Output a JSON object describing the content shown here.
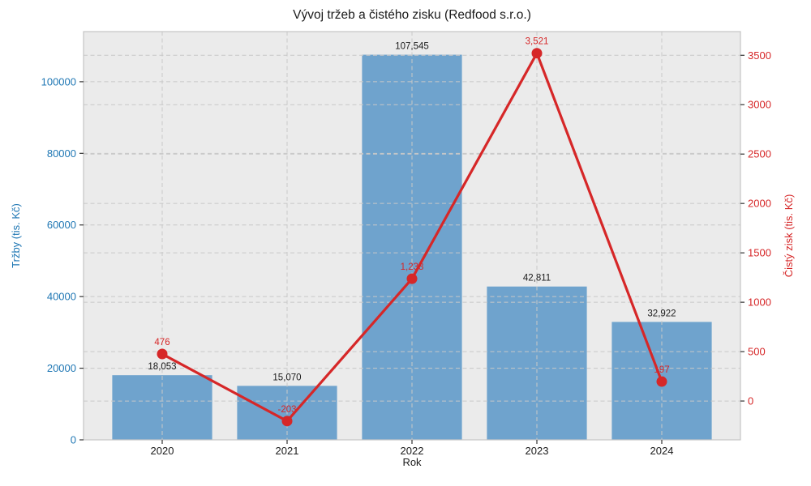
{
  "chart_data": {
    "type": "combo",
    "title": "Vývoj tržeb a čistého zisku (Redfood s.r.o.)",
    "xlabel": "Rok",
    "categories": [
      "2020",
      "2021",
      "2022",
      "2023",
      "2024"
    ],
    "series": [
      {
        "name": "Tržby (tis. Kč)",
        "type": "bar",
        "axis": "left",
        "color": "#6fa3cd",
        "values": [
          18053,
          15070,
          107545,
          42811,
          32922
        ],
        "labels": [
          "18,053",
          "15,070",
          "107,545",
          "42,811",
          "32,922"
        ],
        "label_color": "#1a1a1a"
      },
      {
        "name": "Čistý zisk (tis. Kč)",
        "type": "line",
        "axis": "right",
        "color": "#d62728",
        "values": [
          476,
          -203,
          1238,
          3521,
          197
        ],
        "labels": [
          "476",
          "-203",
          "1,238",
          "3,521",
          "197"
        ],
        "label_color": "#d62728"
      }
    ],
    "left_axis": {
      "label": "Tržby (tis. Kč)",
      "color": "#1f77b4",
      "range": [
        0,
        114000
      ],
      "ticks": [
        0,
        20000,
        40000,
        60000,
        80000,
        100000
      ],
      "tick_labels": [
        "0",
        "20000",
        "40000",
        "60000",
        "80000",
        "100000"
      ]
    },
    "right_axis": {
      "label": "Čistý zisk (tis. Kč)",
      "color": "#d62728",
      "range": [
        -393,
        3740
      ],
      "ticks": [
        0,
        500,
        1000,
        1500,
        2000,
        2500,
        3000,
        3500
      ],
      "tick_labels": [
        "0",
        "500",
        "1000",
        "1500",
        "2000",
        "2500",
        "3000",
        "3500"
      ]
    },
    "grid": {
      "dashed": true,
      "color": "#c8c8c8"
    },
    "plot_bg": "#ebebeb",
    "spine_color": "#c4c4c4",
    "tick_color": "#333333",
    "legend": "none"
  }
}
